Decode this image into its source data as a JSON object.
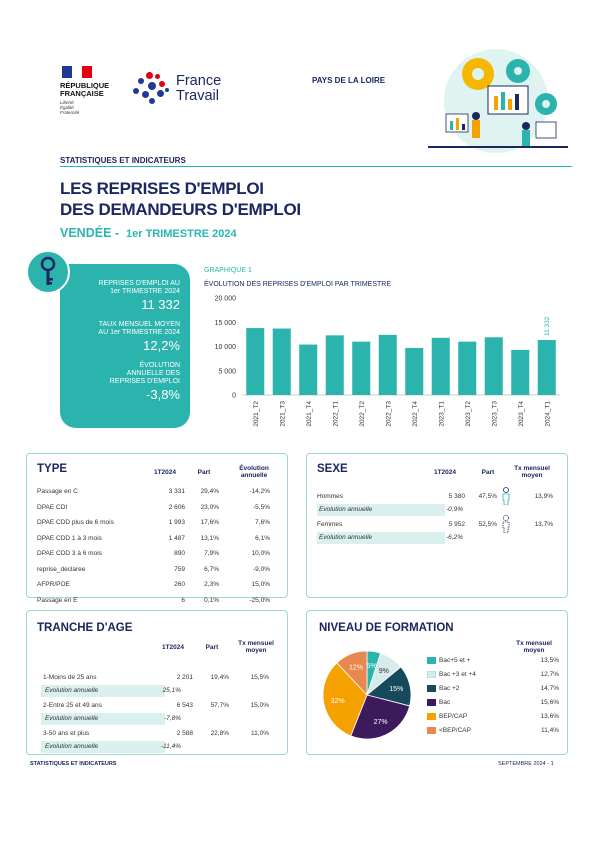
{
  "header": {
    "republic_lines": [
      "RÉPUBLIQUE",
      "FRANÇAISE"
    ],
    "motto_lines": [
      "Liberté",
      "Égalité",
      "Fraternité"
    ],
    "brand_lines": [
      "France",
      "Travail"
    ],
    "region": "PAYS DE LA LOIRE"
  },
  "section_label": "STATISTIQUES ET INDICATEURS",
  "title_lines": [
    "LES REPRISES D'EMPLOI",
    "DES DEMANDEURS D'EMPLOI"
  ],
  "subtitle": {
    "place": "VENDÉE -",
    "period": "1er TRIMESTRE 2024"
  },
  "kpi": {
    "reprises_label": "REPRISES D'EMPLOI AU 1er TRIMESTRE 2024",
    "reprises_value": "11 332",
    "taux_label": "TAUX MENSUEL MOYEN AU 1er TRIMESTRE 2024",
    "taux_value": "12,2%",
    "evol_label": "ÉVOLUTION ANNUELLE DES REPRISES D'EMPLOI",
    "evol_value": "-3,8%"
  },
  "chart_label": "GRAPHIQUE 1",
  "chart_data": {
    "type": "bar",
    "title": "ÉVOLUTION DES REPRISES D'EMPLOI PAR TRIMESTRE",
    "categories": [
      "2021_T2",
      "2021_T3",
      "2021_T4",
      "2022_T1",
      "2022_T2",
      "2022_T3",
      "2022_T4",
      "2023_T1",
      "2023_T2",
      "2023_T3",
      "2023_T4",
      "2024_T1"
    ],
    "values": [
      13800,
      13700,
      10400,
      12300,
      11000,
      12400,
      9700,
      11800,
      11000,
      11900,
      9300,
      11332
    ],
    "ylim": [
      0,
      20000
    ],
    "yticks": [
      "0",
      "5 000",
      "10 000",
      "15 000",
      "20 000"
    ],
    "last_label": "11 332",
    "color": "#2bb3ad"
  },
  "type_box": {
    "title": "TYPE",
    "headers": [
      "1T2024",
      "Part",
      "Évolution annuelle"
    ],
    "rows": [
      {
        "label": "Passage en C",
        "v": "3 331",
        "p": "29,4%",
        "e": "-14,2%"
      },
      {
        "label": "DPAE CDI",
        "v": "2 606",
        "p": "23,0%",
        "e": "-5,5%"
      },
      {
        "label": "DPAE CDD plus de 6 mois",
        "v": "1 993",
        "p": "17,6%",
        "e": "7,6%"
      },
      {
        "label": "DPAE CDD 1 à 3 mois",
        "v": "1 487",
        "p": "13,1%",
        "e": "6,1%"
      },
      {
        "label": "DPAE CDD 3 à 6 mois",
        "v": "890",
        "p": "7,9%",
        "e": "10,0%"
      },
      {
        "label": "reprise_declaree",
        "v": "759",
        "p": "6,7%",
        "e": "-9,0%"
      },
      {
        "label": "AFPR/POE",
        "v": "260",
        "p": "2,3%",
        "e": "15,0%"
      },
      {
        "label": "Passage en E",
        "v": "6",
        "p": "0,1%",
        "e": "-25,0%"
      }
    ]
  },
  "sexe_box": {
    "title": "SEXE",
    "headers": [
      "1T2024",
      "Part",
      "Tx mensuel moyen"
    ],
    "rows": [
      {
        "label": "Hommes",
        "v": "5 380",
        "p": "47,5%",
        "t": "13,9%",
        "evo_label": "Evolution annuelle",
        "evo": "-0,9%"
      },
      {
        "label": "Femmes",
        "v": "5 952",
        "p": "52,5%",
        "t": "13,7%",
        "evo_label": "Evolution annuelle",
        "evo": "-6,2%"
      }
    ]
  },
  "age_box": {
    "title": "TRANCHE D'AGE",
    "headers": [
      "1T2024",
      "Part",
      "Tx mensuel moyen"
    ],
    "rows": [
      {
        "label": "1-Moins de 25 ans",
        "v": "2 201",
        "p": "19,4%",
        "t": "15,5%",
        "evo_label": "Evolution annuelle",
        "evo": "25,1%"
      },
      {
        "label": "2-Entre 25 et 49 ans",
        "v": "6 543",
        "p": "57,7%",
        "t": "15,0%",
        "evo_label": "Evolution annuelle",
        "evo": "-7,8%"
      },
      {
        "label": "3-50 ans et plus",
        "v": "2 588",
        "p": "22,8%",
        "t": "11,0%",
        "evo_label": "Evolution annuelle",
        "evo": "-11,4%"
      }
    ]
  },
  "formation_box": {
    "title": "NIVEAU DE FORMATION",
    "header": "Tx mensuel moyen",
    "items": [
      {
        "label": "Bac+5 et +",
        "share": 5,
        "pie_label": "5%",
        "tx": "13,5%",
        "color": "#2bb3ad"
      },
      {
        "label": "Bac +3 et +4",
        "share": 9,
        "pie_label": "9%",
        "tx": "12,7%",
        "color": "#d6ecea"
      },
      {
        "label": "Bac +2",
        "share": 15,
        "pie_label": "15%",
        "tx": "14,7%",
        "color": "#17495c"
      },
      {
        "label": "Bac",
        "share": 27,
        "pie_label": "27%",
        "tx": "15,6%",
        "color": "#3d1a5b"
      },
      {
        "label": "BEP/CAP",
        "share": 32,
        "pie_label": "32%",
        "tx": "13,6%",
        "color": "#f5a100"
      },
      {
        "label": "<BEP/CAP",
        "share": 12,
        "pie_label": "12%",
        "tx": "11,4%",
        "color": "#e8884f"
      }
    ]
  },
  "footer": {
    "left": "STATISTIQUES ET INDICATEURS",
    "right": "SEPTEMBRE 2024 - 1"
  }
}
